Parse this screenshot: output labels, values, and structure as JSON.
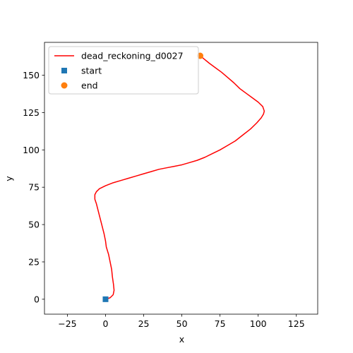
{
  "chart_data": {
    "type": "line",
    "title": "",
    "xlabel": "x",
    "ylabel": "y",
    "xlim": [
      -40,
      139
    ],
    "ylim": [
      -10,
      172
    ],
    "xticks": [
      -25,
      0,
      25,
      50,
      75,
      100,
      125
    ],
    "yticks": [
      0,
      25,
      50,
      75,
      100,
      125,
      150
    ],
    "grid": false,
    "legend_position": "top-left",
    "series": [
      {
        "name": "dead_reckoning_d0027",
        "kind": "line",
        "color": "#ff0000",
        "points": [
          [
            0,
            0
          ],
          [
            3,
            1
          ],
          [
            5,
            3
          ],
          [
            5.6,
            6
          ],
          [
            5.2,
            10
          ],
          [
            4.5,
            15
          ],
          [
            4,
            20
          ],
          [
            3,
            25
          ],
          [
            2,
            30
          ],
          [
            0.5,
            35
          ],
          [
            0,
            39
          ],
          [
            -1,
            44
          ],
          [
            -2,
            48
          ],
          [
            -3,
            52
          ],
          [
            -4,
            56
          ],
          [
            -5,
            60
          ],
          [
            -6,
            64
          ],
          [
            -7,
            67
          ],
          [
            -7,
            70
          ],
          [
            -6,
            72
          ],
          [
            -4,
            74
          ],
          [
            0,
            76
          ],
          [
            5,
            78
          ],
          [
            10,
            79.5
          ],
          [
            15,
            81
          ],
          [
            20,
            82.5
          ],
          [
            25,
            84
          ],
          [
            30,
            85.5
          ],
          [
            35,
            87
          ],
          [
            40,
            88
          ],
          [
            45,
            89
          ],
          [
            50,
            90
          ],
          [
            55,
            91.5
          ],
          [
            60,
            93
          ],
          [
            65,
            95
          ],
          [
            70,
            97.5
          ],
          [
            75,
            100
          ],
          [
            80,
            103
          ],
          [
            85,
            106
          ],
          [
            90,
            110
          ],
          [
            95,
            114
          ],
          [
            99,
            118
          ],
          [
            102,
            121.5
          ],
          [
            103.5,
            124
          ],
          [
            104,
            126
          ],
          [
            103,
            129
          ],
          [
            100,
            132
          ],
          [
            96,
            135
          ],
          [
            92,
            138
          ],
          [
            88,
            141
          ],
          [
            84,
            145
          ],
          [
            80,
            148.5
          ],
          [
            76,
            152
          ],
          [
            72,
            155
          ],
          [
            68,
            158
          ],
          [
            65,
            160.5
          ],
          [
            62,
            163
          ]
        ]
      },
      {
        "name": "start",
        "kind": "marker-square",
        "color": "#1f77b4",
        "points": [
          [
            0,
            0
          ]
        ]
      },
      {
        "name": "end",
        "kind": "marker-circle",
        "color": "#ff7f0e",
        "points": [
          [
            62,
            163
          ]
        ]
      }
    ]
  }
}
